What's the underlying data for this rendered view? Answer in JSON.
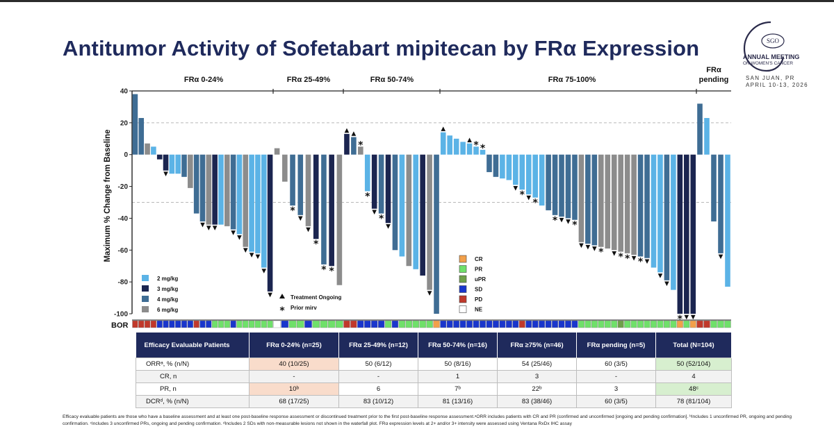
{
  "title": "Antitumor Activity of Sofetabart mipitecan by FRα Expression",
  "logo": {
    "name": "SGO",
    "line1": "ANNUAL MEETING",
    "line2": "ON WOMEN'S CANCER",
    "location": "SAN JUAN, PR",
    "dates": "APRIL 10-13, 2026"
  },
  "chart_data": {
    "type": "bar",
    "title": "Antitumor Activity of Sofetabart mipitecan by FRα Expression",
    "ylabel": "Maximum % Change from Baseline",
    "ylim": [
      -100,
      40
    ],
    "yticks": [
      40,
      20,
      0,
      -20,
      -40,
      -60,
      -80,
      -100
    ],
    "reference_lines": [
      20,
      -30
    ],
    "groups": [
      {
        "label": "FRα 0-24%",
        "bars": [
          {
            "v": 38,
            "d": "4"
          },
          {
            "v": 23,
            "d": "4"
          },
          {
            "v": 7,
            "d": "6"
          },
          {
            "v": 5,
            "d": "2"
          },
          {
            "v": -3,
            "d": "3"
          },
          {
            "v": -10,
            "d": "3",
            "m": "tri"
          },
          {
            "v": -12,
            "d": "2"
          },
          {
            "v": -12,
            "d": "2"
          },
          {
            "v": -14,
            "d": "4"
          },
          {
            "v": -21,
            "d": "6"
          },
          {
            "v": -37,
            "d": "4"
          },
          {
            "v": -42,
            "d": "4",
            "m": "tri"
          },
          {
            "v": -44,
            "d": "6",
            "m": "tri"
          },
          {
            "v": -44,
            "d": "3",
            "m": "tri"
          },
          {
            "v": -44,
            "d": "2"
          },
          {
            "v": -45,
            "d": "6"
          },
          {
            "v": -47,
            "d": "4",
            "m": "tri"
          },
          {
            "v": -50,
            "d": "2",
            "m": "tri"
          },
          {
            "v": -58,
            "d": "6",
            "m": "tri"
          },
          {
            "v": -61,
            "d": "2",
            "m": "tri"
          },
          {
            "v": -62,
            "d": "2",
            "m": "tri"
          },
          {
            "v": -71,
            "d": "2",
            "m": "tri"
          },
          {
            "v": -86,
            "d": "3",
            "m": "tri"
          }
        ]
      },
      {
        "label": "FRα 25-49%",
        "bars": [
          {
            "v": 4,
            "d": "6"
          },
          {
            "v": -17,
            "d": "6"
          },
          {
            "v": -32,
            "d": "4",
            "m": "star"
          },
          {
            "v": -38,
            "d": "4",
            "m": "tri"
          },
          {
            "v": -45,
            "d": "6",
            "m": "tri"
          },
          {
            "v": -53,
            "d": "3",
            "m": "star"
          },
          {
            "v": -69,
            "d": "4",
            "m": "star"
          },
          {
            "v": -70,
            "d": "3",
            "m": "star"
          },
          {
            "v": -82,
            "d": "6"
          }
        ]
      },
      {
        "label": "FRα 50-74%",
        "bars": [
          {
            "v": 13,
            "d": "3",
            "m": "tri"
          },
          {
            "v": 11,
            "d": "4",
            "m": "tri"
          },
          {
            "v": 5,
            "d": "6",
            "m": "star"
          },
          {
            "v": -23,
            "d": "2",
            "m": "star"
          },
          {
            "v": -34,
            "d": "3",
            "m": "tri"
          },
          {
            "v": -37,
            "d": "4",
            "m": "star"
          },
          {
            "v": -43,
            "d": "3",
            "m": "tri"
          },
          {
            "v": -60,
            "d": "4"
          },
          {
            "v": -64,
            "d": "2"
          },
          {
            "v": -70,
            "d": "6"
          },
          {
            "v": -72,
            "d": "2"
          },
          {
            "v": -76,
            "d": "3"
          },
          {
            "v": -85,
            "d": "6",
            "m": "tri"
          },
          {
            "v": -100,
            "d": "4"
          }
        ]
      },
      {
        "label": "FRα 75-100%",
        "bars": [
          {
            "v": 14,
            "d": "2",
            "m": "tri"
          },
          {
            "v": 12,
            "d": "2"
          },
          {
            "v": 10,
            "d": "2"
          },
          {
            "v": 8,
            "d": "2"
          },
          {
            "v": 7,
            "d": "2",
            "m": "tri"
          },
          {
            "v": 5,
            "d": "2",
            "m": "star"
          },
          {
            "v": 3,
            "d": "2",
            "m": "star"
          },
          {
            "v": -11,
            "d": "4"
          },
          {
            "v": -14,
            "d": "4"
          },
          {
            "v": -15,
            "d": "2"
          },
          {
            "v": -16,
            "d": "2"
          },
          {
            "v": -19,
            "d": "2",
            "m": "tri"
          },
          {
            "v": -22,
            "d": "2",
            "m": "star"
          },
          {
            "v": -25,
            "d": "2",
            "m": "tri"
          },
          {
            "v": -27,
            "d": "2",
            "m": "star"
          },
          {
            "v": -32,
            "d": "2"
          },
          {
            "v": -35,
            "d": "4"
          },
          {
            "v": -38,
            "d": "4",
            "m": "star"
          },
          {
            "v": -39,
            "d": "4",
            "m": "tri"
          },
          {
            "v": -40,
            "d": "4",
            "m": "tri"
          },
          {
            "v": -41,
            "d": "4",
            "m": "star"
          },
          {
            "v": -55,
            "d": "6",
            "m": "tri"
          },
          {
            "v": -56,
            "d": "4",
            "m": "tri"
          },
          {
            "v": -57,
            "d": "4",
            "m": "tri"
          },
          {
            "v": -58,
            "d": "6",
            "m": "star"
          },
          {
            "v": -59,
            "d": "6"
          },
          {
            "v": -60,
            "d": "6",
            "m": "tri"
          },
          {
            "v": -61,
            "d": "6",
            "m": "star"
          },
          {
            "v": -62,
            "d": "6",
            "m": "star"
          },
          {
            "v": -63,
            "d": "6",
            "m": "tri"
          },
          {
            "v": -64,
            "d": "4",
            "m": "star"
          },
          {
            "v": -65,
            "d": "4",
            "m": "tri"
          },
          {
            "v": -71,
            "d": "2"
          },
          {
            "v": -74,
            "d": "2",
            "m": "tri"
          },
          {
            "v": -79,
            "d": "4",
            "m": "tri"
          },
          {
            "v": -85,
            "d": "2"
          },
          {
            "v": -100,
            "d": "3",
            "m": "star"
          },
          {
            "v": -100,
            "d": "3",
            "m": "tri"
          },
          {
            "v": -100,
            "d": "3",
            "m": "tri"
          }
        ]
      },
      {
        "label": "FRα pending",
        "bars": [
          {
            "v": 32,
            "d": "4"
          },
          {
            "v": 23,
            "d": "2"
          },
          {
            "v": -42,
            "d": "4"
          },
          {
            "v": -62,
            "d": "4",
            "m": "tri"
          },
          {
            "v": -83,
            "d": "2"
          }
        ]
      }
    ],
    "series": [
      {
        "name": "2 mg/kg",
        "key": "2",
        "color": "#5bb3e6"
      },
      {
        "name": "3 mg/kg",
        "key": "3",
        "color": "#1b2550"
      },
      {
        "name": "4 mg/kg",
        "key": "4",
        "color": "#3f6d94"
      },
      {
        "name": "6 mg/kg",
        "key": "6",
        "color": "#8c8c8c"
      }
    ],
    "markers": {
      "tri": "Treatment Ongoing",
      "star": "Prior mirv"
    },
    "bor_label": "BOR",
    "bor_categories": [
      {
        "code": "CR",
        "color": "#f2a04a"
      },
      {
        "code": "PR",
        "color": "#6fe06a"
      },
      {
        "code": "uPR",
        "color": "#6ea04a"
      },
      {
        "code": "SD",
        "color": "#1936cc"
      },
      {
        "code": "PD",
        "color": "#c0392b"
      },
      {
        "code": "NE",
        "color": "#ffffff"
      }
    ],
    "bor_strips": [
      "PD PD PD PD SD SD SD SD SD SD PD SD SD PR PR PR SD PR PR PR PR PR PR",
      "NE SD PR PR SD PR PR PR PR",
      "PD PD SD SD SD SD PR SD PR PR PR PR PR CR",
      "SD SD SD SD SD SD SD SD SD SD SD SD PD SD SD SD SD SD SD SD SD PR PR PR PR PR PR uPR PR PR PR PR PR PR PR PR CR PR CR",
      "PD PD PR PR PR"
    ]
  },
  "legend": {
    "doses": [
      "2 mg/kg",
      "3 mg/kg",
      "4 mg/kg",
      "6 mg/kg"
    ],
    "treatment_ongoing": "Treatment Ongoing",
    "prior_mirv": "Prior mirv",
    "bor": [
      "CR",
      "PR",
      "uPR",
      "SD",
      "PD",
      "NE"
    ]
  },
  "table": {
    "headers": [
      "Efficacy Evaluable Patients",
      "FRα 0-24% (n=25)",
      "FRα 25-49% (n=12)",
      "FRα 50-74% (n=16)",
      "FRα ≥75% (n=46)",
      "FRα pending (n=5)",
      "Total (N=104)"
    ],
    "rows": [
      {
        "label": "ORRᵃ, % (n/N)",
        "cells": [
          "40 (10/25)",
          "50 (6/12)",
          "50 (8/16)",
          "54 (25/46)",
          "60 (3/5)",
          "50 (52/104)"
        ]
      },
      {
        "label": "CR, n",
        "cells": [
          "-",
          "-",
          "1",
          "3",
          "-",
          "4"
        ]
      },
      {
        "label": "PR, n",
        "cells": [
          "10ᵇ",
          "6",
          "7ᵇ",
          "22ᵇ",
          "3",
          "48ᶜ"
        ]
      },
      {
        "label": "DCRᵈ, % (n/N)",
        "cells": [
          "68 (17/25)",
          "83 (10/12)",
          "81 (13/16)",
          "83 (38/46)",
          "60 (3/5)",
          "78 (81/104)"
        ]
      }
    ]
  },
  "footnote": "Efficacy evaluable patients are those who have a baseline assessment and at least one post-baseline response assessment or discontinued treatment prior to the first post-baseline response assessment.ᵃORR includes patients with CR and PR (confirmed and unconfirmed [ongoing and pending confirmation]. ᵇIncludes 1 unconfirmed PR, ongoing and pending confirmation. ᶜIncludes 3 unconfirmed PRs, ongoing and pending confirmation. ᵈIncludes 2 SDs with non-measurable lesions not shown in the waterfall plot. FRα expression levels at 2+ and/or 3+ intensity were assessed using Ventana RxDx IHC assay"
}
